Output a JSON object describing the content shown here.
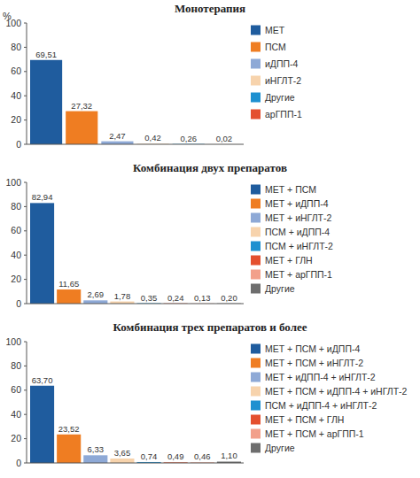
{
  "chart_data": [
    {
      "type": "bar",
      "title": "Монотерапия",
      "ylabel": "%",
      "categories": [
        "МЕТ",
        "ПСМ",
        "иДПП-4",
        "иНГЛТ-2",
        "Другие",
        "арГПП-1"
      ],
      "values": [
        69.51,
        27.32,
        2.47,
        0.42,
        0.26,
        0.02
      ],
      "value_labels": [
        "69,51",
        "27,32",
        "2,47",
        "0,42",
        "0,26",
        "0,02"
      ],
      "colors": [
        "#1f5c9e",
        "#ef7d22",
        "#8ea9d6",
        "#f7d3ac",
        "#1e90d0",
        "#e4502f"
      ],
      "ylim": [
        0,
        100
      ],
      "yticks": [
        0,
        20,
        40,
        60,
        80,
        100
      ],
      "legend": "right",
      "data_labels": true,
      "tick_labels": "y"
    },
    {
      "type": "bar",
      "title": "Комбинация двух препаратов",
      "categories": [
        "МЕТ + ПСМ",
        "МЕТ + иДПП-4",
        "МЕТ + иНГЛТ-2",
        "ПСМ + иДПП-4",
        "ПСМ + иНГЛТ-2",
        "МЕТ + ГЛН",
        "МЕТ + арГПП-1",
        "Другие"
      ],
      "values": [
        82.94,
        11.65,
        2.69,
        1.78,
        0.35,
        0.24,
        0.13,
        0.2
      ],
      "value_labels": [
        "82,94",
        "11,65",
        "2,69",
        "1,78",
        "0,35",
        "0,24",
        "0,13",
        "0,20"
      ],
      "colors": [
        "#1f5c9e",
        "#ef7d22",
        "#8ea9d6",
        "#f7d3ac",
        "#1e90d0",
        "#e4502f",
        "#f2a08b",
        "#6e6e6e"
      ],
      "ylim": [
        0,
        100
      ],
      "yticks": [
        0,
        20,
        40,
        60,
        80,
        100
      ],
      "legend": "right",
      "data_labels": true,
      "tick_labels": "y"
    },
    {
      "type": "bar",
      "title": "Комбинация трех препаратов и более",
      "categories": [
        "МЕТ + ПСМ + иДПП-4",
        "МЕТ + ПСМ + иНГЛТ-2",
        "МЕТ + иДПП-4 + иНГЛТ-2",
        "МЕТ + ПСМ + иДПП-4 + иНГЛТ-2",
        "ПСМ + иДПП-4 + иНГЛТ-2",
        "МЕТ + ПСМ + ГЛН",
        "МЕТ + ПСМ + арГПП-1",
        "Другие"
      ],
      "values": [
        63.7,
        23.52,
        6.33,
        3.65,
        0.74,
        0.49,
        0.46,
        1.1
      ],
      "value_labels": [
        "63,70",
        "23,52",
        "6,33",
        "3,65",
        "0,74",
        "0,49",
        "0,46",
        "1,10"
      ],
      "colors": [
        "#1f5c9e",
        "#ef7d22",
        "#8ea9d6",
        "#f7d3ac",
        "#1e90d0",
        "#e4502f",
        "#f2a08b",
        "#6e6e6e"
      ],
      "ylim": [
        0,
        100
      ],
      "yticks": [
        0,
        20,
        40,
        60,
        80,
        100
      ],
      "legend": "right",
      "data_labels": true,
      "tick_labels": "y"
    }
  ]
}
